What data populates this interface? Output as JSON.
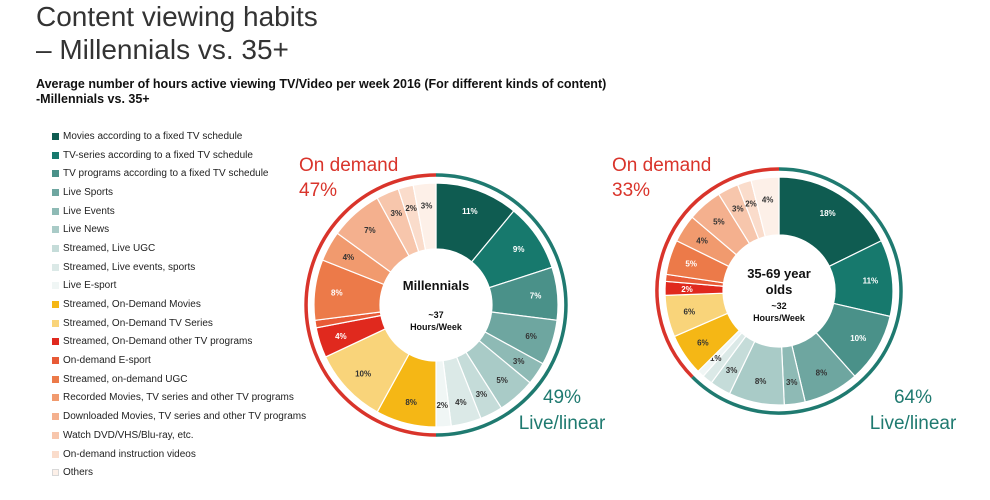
{
  "page": {
    "title_line1": "Content viewing habits",
    "title_line2": "– Millennials vs. 35+",
    "subtitle_line1": "Average number of hours active viewing TV/Video per week 2016 (For different kinds of content)",
    "subtitle_line2": "-Millennials vs. 35+"
  },
  "legend": [
    {
      "label": "Movies according to a fixed TV schedule",
      "color": "#0f5c51"
    },
    {
      "label": "TV-series according to a fixed TV schedule",
      "color": "#17796d"
    },
    {
      "label": "TV programs according to a fixed TV schedule",
      "color": "#4a9189"
    },
    {
      "label": "Live Sports",
      "color": "#6ea6a0"
    },
    {
      "label": "Live Events",
      "color": "#8ebab5"
    },
    {
      "label": "Live News",
      "color": "#a9cbc7"
    },
    {
      "label": "Streamed, Live UGC",
      "color": "#c5dcd9"
    },
    {
      "label": "Streamed, Live events, sports",
      "color": "#dbe9e7"
    },
    {
      "label": "Live E-sport",
      "color": "#f0f6f5"
    },
    {
      "label": "Streamed, On-Demand Movies",
      "color": "#f5b715"
    },
    {
      "label": "Streamed, On-Demand TV Series",
      "color": "#f9d47a"
    },
    {
      "label": "Streamed, On-Demand other TV programs",
      "color": "#e0291e"
    },
    {
      "label": "On-demand E-sport",
      "color": "#e85a36"
    },
    {
      "label": "Streamed, on-demand UGC",
      "color": "#ec7a49"
    },
    {
      "label": "Recorded Movies, TV series and other TV programs",
      "color": "#f19a6e"
    },
    {
      "label": "Downloaded Movies, TV series and other TV programs",
      "color": "#f4b08e"
    },
    {
      "label": "Watch DVD/VHS/Blu-ray, etc.",
      "color": "#f7c6ac"
    },
    {
      "label": "On-demand instruction videos",
      "color": "#fadccb"
    },
    {
      "label": "Others",
      "color": "#fdf0e8"
    }
  ],
  "chart_data": [
    {
      "type": "pie",
      "center_label_line1": "Millennials",
      "center_sub_line1": "~37",
      "center_sub_line2": "Hours/Week",
      "total_hours": "~37",
      "on_demand_line1": "On demand",
      "on_demand_line2": "47%",
      "live_line1": "49%",
      "live_line2": "Live/linear",
      "on_demand_share": 47,
      "live_share": 49,
      "slices": [
        {
          "category": "Movies according to a fixed TV schedule",
          "value": 11,
          "label": "11%"
        },
        {
          "category": "TV-series according to a fixed TV schedule",
          "value": 9,
          "label": "9%"
        },
        {
          "category": "TV programs according to a fixed TV schedule",
          "value": 7,
          "label": "7%"
        },
        {
          "category": "Live Sports",
          "value": 6,
          "label": "6%"
        },
        {
          "category": "Live Events",
          "value": 3,
          "label": "3%"
        },
        {
          "category": "Live News",
          "value": 5,
          "label": "5%"
        },
        {
          "category": "Streamed, Live UGC",
          "value": 3,
          "label": "3%"
        },
        {
          "category": "Streamed, Live events, sports",
          "value": 4,
          "label": "4%"
        },
        {
          "category": "Live E-sport",
          "value": 2,
          "label": "2%"
        },
        {
          "category": "Streamed, On-Demand Movies",
          "value": 8,
          "label": "8%"
        },
        {
          "category": "Streamed, On-Demand TV Series",
          "value": 10,
          "label": "10%"
        },
        {
          "category": "Streamed, On-Demand other TV programs",
          "value": 4,
          "label": "4%"
        },
        {
          "category": "On-demand E-sport",
          "value": 1,
          "label": ""
        },
        {
          "category": "Streamed, on-demand UGC",
          "value": 8,
          "label": "8%"
        },
        {
          "category": "Recorded Movies, TV series and other TV programs",
          "value": 4,
          "label": "4%"
        },
        {
          "category": "Downloaded Movies, TV series and other TV programs",
          "value": 7,
          "label": "7%"
        },
        {
          "category": "Watch DVD/VHS/Blu-ray, etc.",
          "value": 3,
          "label": "3%"
        },
        {
          "category": "On-demand instruction videos",
          "value": 2,
          "label": "2%"
        },
        {
          "category": "Others",
          "value": 3,
          "label": "3%"
        }
      ]
    },
    {
      "type": "pie",
      "center_label_line1": "35-69 year",
      "center_label_line2": "olds",
      "center_sub_line1": "~32",
      "center_sub_line2": "Hours/Week",
      "total_hours": "~32",
      "on_demand_line1": "On demand",
      "on_demand_line2": "33%",
      "live_line1": "64%",
      "live_line2": "Live/linear",
      "on_demand_share": 33,
      "live_share": 64,
      "slices": [
        {
          "category": "Movies according to a fixed TV schedule",
          "value": 18,
          "label": "18%"
        },
        {
          "category": "TV-series according to a fixed TV schedule",
          "value": 11,
          "label": "11%"
        },
        {
          "category": "TV programs according to a fixed TV schedule",
          "value": 10,
          "label": "10%"
        },
        {
          "category": "Live Sports",
          "value": 8,
          "label": "8%"
        },
        {
          "category": "Live Events",
          "value": 3,
          "label": "3%"
        },
        {
          "category": "Live News",
          "value": 8,
          "label": "8%"
        },
        {
          "category": "Streamed, Live UGC",
          "value": 3,
          "label": "3%"
        },
        {
          "category": "Streamed, Live events, sports",
          "value": 1.5,
          "label": ""
        },
        {
          "category": "Live E-sport",
          "value": 1,
          "label": "1%"
        },
        {
          "category": "Streamed, On-Demand Movies",
          "value": 6,
          "label": "6%"
        },
        {
          "category": "Streamed, On-Demand TV Series",
          "value": 6,
          "label": "6%"
        },
        {
          "category": "Streamed, On-Demand other TV programs",
          "value": 2,
          "label": "2%"
        },
        {
          "category": "On-demand E-sport",
          "value": 1,
          "label": ""
        },
        {
          "category": "Streamed, on-demand UGC",
          "value": 5,
          "label": "5%"
        },
        {
          "category": "Recorded Movies, TV series and other TV programs",
          "value": 4,
          "label": "4%"
        },
        {
          "category": "Downloaded Movies, TV series and other TV programs",
          "value": 5,
          "label": "5%"
        },
        {
          "category": "Watch DVD/VHS/Blu-ray, etc.",
          "value": 3,
          "label": "3%"
        },
        {
          "category": "On-demand instruction videos",
          "value": 2,
          "label": "2%"
        },
        {
          "category": "Others",
          "value": 4,
          "label": "4%"
        }
      ]
    }
  ],
  "colors": {
    "on_demand_ring": "#d9342b",
    "live_ring": "#1f7a70",
    "on_demand_text": "#d9342b",
    "live_text": "#1f7a70",
    "title_text": "#333333"
  }
}
